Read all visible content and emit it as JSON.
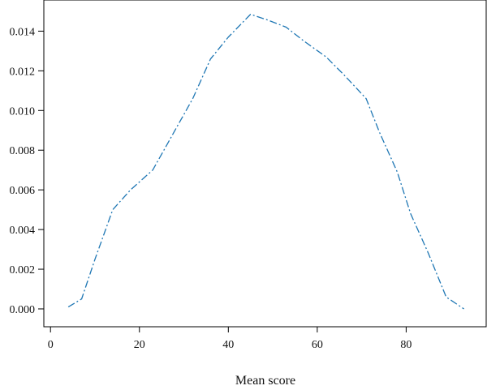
{
  "chart_data": {
    "type": "line",
    "title": "",
    "xlabel": "Mean score",
    "ylabel": "",
    "xlim": [
      -1.5,
      98
    ],
    "ylim": [
      -0.0009,
      0.01557
    ],
    "x_ticks": [
      0,
      20,
      40,
      60,
      80
    ],
    "x_tick_labels": [
      "0",
      "20",
      "40",
      "60",
      "80"
    ],
    "y_ticks": [
      0,
      0.002,
      0.004,
      0.006,
      0.008,
      0.01,
      0.012,
      0.014
    ],
    "y_tick_labels": [
      "0.000",
      "0.002",
      "0.004",
      "0.006",
      "0.008",
      "0.010",
      "0.012",
      "0.014"
    ],
    "grid": false,
    "legend": "none",
    "series": [
      {
        "color": "#1f77b4",
        "line_style": "dash-dot",
        "x": [
          4,
          7,
          10,
          14,
          18,
          23,
          27,
          32,
          36,
          40,
          45,
          49,
          53,
          57,
          62,
          66,
          71,
          74,
          78,
          81,
          85,
          89,
          93
        ],
        "y": [
          0.0001,
          0.0005,
          0.0025,
          0.005,
          0.006,
          0.007,
          0.0086,
          0.0106,
          0.0126,
          0.0137,
          0.01485,
          0.01455,
          0.0142,
          0.0135,
          0.0127,
          0.0118,
          0.0106,
          0.0089,
          0.0069,
          0.0048,
          0.0028,
          0.0006,
          0.0
        ]
      }
    ]
  }
}
